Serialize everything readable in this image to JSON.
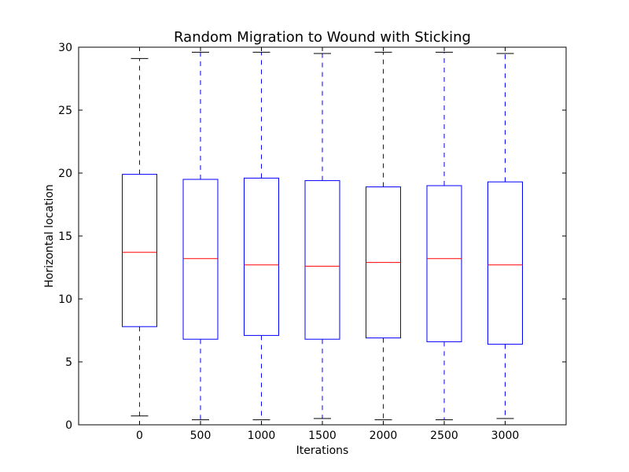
{
  "chart_data": {
    "type": "box",
    "title": "Random Migration to Wound with Sticking",
    "xlabel": "Iterations",
    "ylabel": "Horizontal location",
    "categories": [
      "0",
      "500",
      "1000",
      "1500",
      "2000",
      "2500",
      "3000"
    ],
    "ylim": [
      0,
      30
    ],
    "yticks": [
      0,
      5,
      10,
      15,
      20,
      25,
      30
    ],
    "grid": false,
    "legend": "none",
    "boxes": [
      {
        "category": "0",
        "whisker_low": 0.7,
        "q1": 7.8,
        "median": 13.7,
        "q3": 19.9,
        "whisker_high": 29.1
      },
      {
        "category": "500",
        "whisker_low": 0.4,
        "q1": 6.8,
        "median": 13.2,
        "q3": 19.5,
        "whisker_high": 29.6
      },
      {
        "category": "1000",
        "whisker_low": 0.4,
        "q1": 7.1,
        "median": 12.7,
        "q3": 19.6,
        "whisker_high": 29.6
      },
      {
        "category": "1500",
        "whisker_low": 0.5,
        "q1": 6.8,
        "median": 12.6,
        "q3": 19.4,
        "whisker_high": 29.5
      },
      {
        "category": "2000",
        "whisker_low": 0.4,
        "q1": 6.9,
        "median": 12.9,
        "q3": 18.9,
        "whisker_high": 29.6
      },
      {
        "category": "2500",
        "whisker_low": 0.4,
        "q1": 6.6,
        "median": 13.2,
        "q3": 19.0,
        "whisker_high": 29.6
      },
      {
        "category": "3000",
        "whisker_low": 0.5,
        "q1": 6.4,
        "median": 12.7,
        "q3": 19.3,
        "whisker_high": 29.5
      }
    ],
    "colors": {
      "box": "#0000ff",
      "whisker": "#0000ff",
      "cap": "#000000",
      "median": "#ff0000",
      "axes": "#000000"
    }
  }
}
